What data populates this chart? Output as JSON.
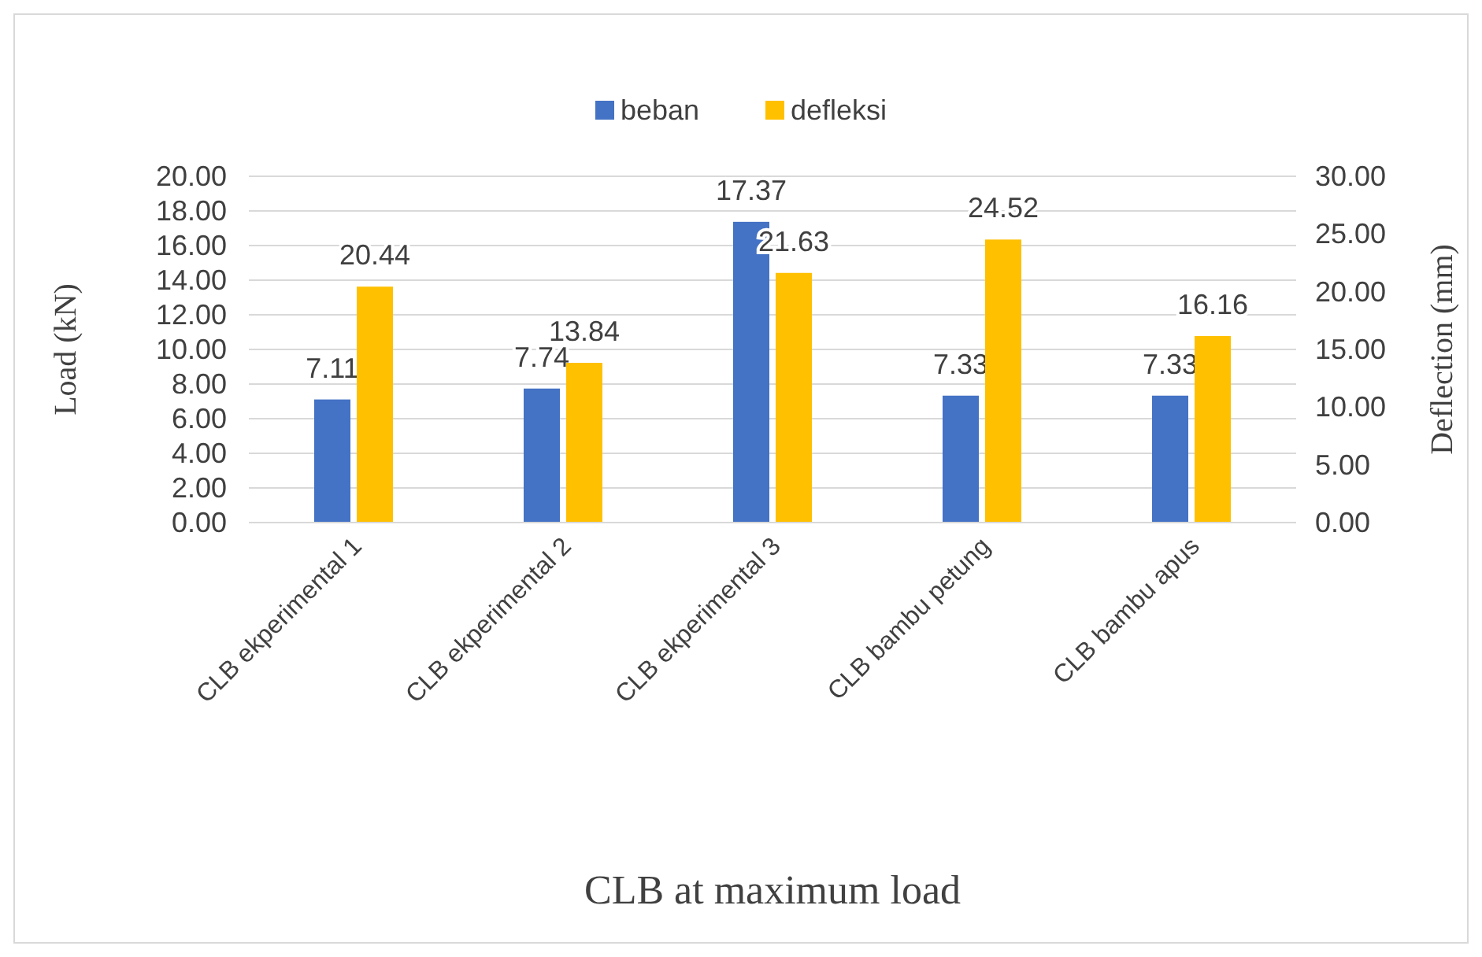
{
  "chart_data": {
    "type": "bar",
    "xlabel": "CLB at maximum load",
    "ylabel": "Load (kN)",
    "y2label": "Deflection (mm)",
    "categories": [
      "CLB ekperimental 1",
      "CLB ekperimental 2",
      "CLB ekperimental 3",
      "CLB bambu petung",
      "CLB bambu apus"
    ],
    "series": [
      {
        "name": "beban",
        "color": "#4472c4",
        "values": [
          7.11,
          7.74,
          17.37,
          7.33,
          7.33
        ]
      },
      {
        "name": "defleksi",
        "color": "#ffc000",
        "axis": "y2",
        "values": [
          20.44,
          13.84,
          21.63,
          24.52,
          16.16
        ]
      }
    ],
    "ylim": [
      0,
      20
    ],
    "yticks": [
      {
        "value": 0,
        "label": "0.00"
      },
      {
        "value": 2,
        "label": "2.00"
      },
      {
        "value": 4,
        "label": "4.00"
      },
      {
        "value": 6,
        "label": "6.00"
      },
      {
        "value": 8,
        "label": "8.00"
      },
      {
        "value": 10,
        "label": "10.00"
      },
      {
        "value": 12,
        "label": "12.00"
      },
      {
        "value": 14,
        "label": "14.00"
      },
      {
        "value": 16,
        "label": "16.00"
      },
      {
        "value": 18,
        "label": "18.00"
      },
      {
        "value": 20,
        "label": "20.00"
      }
    ],
    "y2lim": [
      0,
      30
    ],
    "y2ticks": [
      {
        "value": 0,
        "label": "0.00"
      },
      {
        "value": 5,
        "label": "5.00"
      },
      {
        "value": 10,
        "label": "10.00"
      },
      {
        "value": 15,
        "label": "15.00"
      },
      {
        "value": 20,
        "label": "20.00"
      },
      {
        "value": 25,
        "label": "25.00"
      },
      {
        "value": 30,
        "label": "30.00"
      }
    ],
    "grid": "y",
    "legend": "top",
    "data_labels": true
  }
}
